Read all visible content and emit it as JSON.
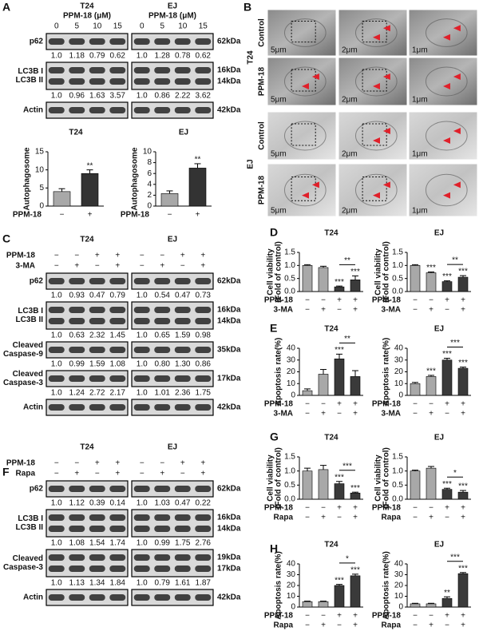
{
  "panel_letters": [
    "A",
    "B",
    "C",
    "D",
    "E",
    "F",
    "G",
    "H"
  ],
  "blot_a": {
    "cell_lines": [
      "T24",
      "EJ"
    ],
    "dose_label": "PPM-18 (μM)",
    "doses": [
      0,
      5,
      10,
      15
    ],
    "rows": [
      {
        "labels": [
          "p62"
        ],
        "kda": [
          "62kDa"
        ],
        "quant": [
          [
            "1.0",
            "1.18",
            "0.79",
            "0.62"
          ],
          [
            "1.0",
            "1.28",
            "0.78",
            "0.62"
          ]
        ]
      },
      {
        "labels": [
          "LC3B I",
          "LC3B II"
        ],
        "kda": [
          "16kDa",
          "14kDa"
        ],
        "quant": [
          [
            "1.0",
            "0.96",
            "1.63",
            "3.57"
          ],
          [
            "1.0",
            "0.86",
            "2.22",
            "3.62"
          ]
        ]
      },
      {
        "labels": [
          "Actin"
        ],
        "kda": [
          "42kDa"
        ]
      }
    ]
  },
  "em_panel": {
    "groups": [
      {
        "cell_line": "T24",
        "rows": [
          "Control",
          "PPM-18"
        ]
      },
      {
        "cell_line": "EJ",
        "rows": [
          "Control",
          "PPM-18"
        ]
      }
    ],
    "scale_bars": [
      "5μm",
      "2μm",
      "1μm"
    ]
  },
  "blot_c": {
    "cell_lines": [
      "T24",
      "EJ"
    ],
    "conditions": [
      {
        "name": "PPM-18",
        "signs": [
          "−",
          "−",
          "+",
          "+"
        ]
      },
      {
        "name": "3-MA",
        "signs": [
          "−",
          "+",
          "−",
          "+"
        ]
      }
    ],
    "rows": [
      {
        "labels": [
          "p62"
        ],
        "kda": [
          "62kDa"
        ],
        "quant": [
          [
            "1.0",
            "0.93",
            "0.47",
            "0.79"
          ],
          [
            "1.0",
            "0.54",
            "0.47",
            "0.73"
          ]
        ]
      },
      {
        "labels": [
          "LC3B I",
          "LC3B II"
        ],
        "kda": [
          "16kDa",
          "14kDa"
        ],
        "quant": [
          [
            "1.0",
            "0.63",
            "2.32",
            "1.45"
          ],
          [
            "1.0",
            "0.65",
            "1.59",
            "0.98"
          ]
        ]
      },
      {
        "labels": [
          "Cleaved",
          "Caspase-9"
        ],
        "kda": [
          "35kDa"
        ],
        "quant": [
          [
            "1.0",
            "0.99",
            "1.59",
            "1.08"
          ],
          [
            "1.0",
            "0.80",
            "1.30",
            "0.86"
          ]
        ]
      },
      {
        "labels": [
          "Cleaved",
          "Caspase-3"
        ],
        "kda": [
          "17kDa"
        ],
        "quant": [
          [
            "1.0",
            "1.24",
            "2.72",
            "2.17"
          ],
          [
            "1.0",
            "1.01",
            "2.36",
            "1.75"
          ]
        ]
      },
      {
        "labels": [
          "Actin"
        ],
        "kda": [
          "42kDa"
        ]
      }
    ]
  },
  "blot_f": {
    "cell_lines": [
      "T24",
      "EJ"
    ],
    "conditions": [
      {
        "name": "PPM-18",
        "signs": [
          "−",
          "−",
          "+",
          "+"
        ]
      },
      {
        "name": "Rapa",
        "signs": [
          "−",
          "+",
          "−",
          "+"
        ]
      }
    ],
    "rows": [
      {
        "labels": [
          "p62"
        ],
        "kda": [
          "62kDa"
        ],
        "quant": [
          [
            "1.0",
            "1.12",
            "0.39",
            "0.14"
          ],
          [
            "1.0",
            "1.03",
            "0.47",
            "0.22"
          ]
        ]
      },
      {
        "labels": [
          "LC3B I",
          "LC3B II"
        ],
        "kda": [
          "16kDa",
          "14kDa"
        ],
        "quant": [
          [
            "1.0",
            "1.08",
            "1.54",
            "1.74"
          ],
          [
            "1.0",
            "0.99",
            "1.75",
            "2.76"
          ]
        ]
      },
      {
        "labels": [
          "Cleaved",
          "Caspase-3"
        ],
        "kda": [
          "19kDa",
          "17kDa"
        ],
        "quant": [
          [
            "1.0",
            "1.13",
            "1.34",
            "1.84"
          ],
          [
            "1.0",
            "0.79",
            "1.61",
            "1.87"
          ]
        ]
      },
      {
        "labels": [
          "Actin"
        ],
        "kda": [
          "42kDa"
        ]
      }
    ]
  },
  "chart_data": [
    {
      "type": "bar",
      "title": "T24",
      "y_label": [
        "Autophagosome"
      ],
      "categories": [
        null,
        null
      ],
      "values": [
        4,
        9
      ],
      "errors": [
        0.8,
        1.0
      ],
      "colors": [
        "#a8a8a8",
        "#333333"
      ],
      "significance": [
        null,
        "**"
      ],
      "ylim": [
        0,
        15
      ],
      "yticks": [
        0,
        5,
        10,
        15
      ],
      "conditions": [
        {
          "name": "PPM-18",
          "signs": [
            "−",
            "+"
          ]
        }
      ]
    },
    {
      "type": "bar",
      "title": "EJ",
      "y_label": [
        "Autophagosome"
      ],
      "categories": [
        null,
        null
      ],
      "values": [
        2.3,
        7
      ],
      "errors": [
        0.5,
        0.8
      ],
      "colors": [
        "#a8a8a8",
        "#333333"
      ],
      "significance": [
        null,
        "**"
      ],
      "ylim": [
        0,
        10
      ],
      "yticks": [
        0,
        2,
        4,
        6,
        8,
        10
      ],
      "conditions": [
        {
          "name": "PPM-18",
          "signs": [
            "−",
            "+"
          ]
        }
      ]
    },
    {
      "type": "bar",
      "title": "T24",
      "y_label": [
        "Cell viability",
        "(Fold of control)"
      ],
      "categories": [
        null,
        null,
        null,
        null
      ],
      "values": [
        1.0,
        0.92,
        0.18,
        0.45
      ],
      "errors": [
        0.03,
        0.05,
        0.03,
        0.15
      ],
      "colors": [
        "#a8a8a8",
        "#a8a8a8",
        "#3a3a3a",
        "#3a3a3a"
      ],
      "significance": [
        null,
        null,
        "***",
        "***"
      ],
      "bracket": "**",
      "ylim": [
        0,
        1.5
      ],
      "yticks": [
        {
          "value": 0,
          "label": "0.0"
        },
        0.5,
        {
          "value": 1,
          "label": "1.0"
        },
        1.5
      ],
      "conditions": [
        {
          "name": "PPM-18",
          "signs": [
            "−",
            "−",
            "+",
            "+"
          ]
        },
        {
          "name": "3-MA",
          "signs": [
            "−",
            "+",
            "−",
            "+"
          ]
        }
      ]
    },
    {
      "type": "bar",
      "title": "EJ",
      "y_label": [
        "Cell viability",
        "(Fold of control)"
      ],
      "categories": [
        null,
        null,
        null,
        null
      ],
      "values": [
        1.0,
        0.72,
        0.38,
        0.55
      ],
      "errors": [
        0.03,
        0.03,
        0.03,
        0.06
      ],
      "colors": [
        "#a8a8a8",
        "#a8a8a8",
        "#3a3a3a",
        "#3a3a3a"
      ],
      "significance": [
        null,
        "***",
        "***",
        "***"
      ],
      "bracket": "**",
      "ylim": [
        0,
        1.5
      ],
      "yticks": [
        {
          "value": 0,
          "label": "0.0"
        },
        0.5,
        {
          "value": 1,
          "label": "1.0"
        },
        1.5
      ],
      "conditions": [
        {
          "name": "PPM-18",
          "signs": [
            "−",
            "−",
            "+",
            "+"
          ]
        },
        {
          "name": "3-MA",
          "signs": [
            "−",
            "+",
            "−",
            "+"
          ]
        }
      ]
    },
    {
      "type": "bar",
      "title": "T24",
      "y_label": [
        "Apoptosis rate(%)"
      ],
      "categories": [
        null,
        null,
        null,
        null
      ],
      "values": [
        4,
        18,
        31,
        16
      ],
      "errors": [
        1.5,
        4,
        4,
        5
      ],
      "colors": [
        "#a8a8a8",
        "#a8a8a8",
        "#3a3a3a",
        "#3a3a3a"
      ],
      "significance": [
        null,
        null,
        "***",
        null
      ],
      "bracket": "**",
      "ylim": [
        0,
        40
      ],
      "yticks": [
        0,
        10,
        20,
        30,
        40
      ],
      "conditions": [
        {
          "name": "PPM-18",
          "signs": [
            "−",
            "−",
            "+",
            "+"
          ]
        },
        {
          "name": "3-MA",
          "signs": [
            "−",
            "+",
            "−",
            "+"
          ]
        }
      ]
    },
    {
      "type": "bar",
      "title": "EJ",
      "y_label": [
        "Apoptosis rate(%)"
      ],
      "categories": [
        null,
        null,
        null,
        null
      ],
      "values": [
        10,
        16,
        30,
        23
      ],
      "errors": [
        1,
        1,
        1.5,
        1
      ],
      "colors": [
        "#a8a8a8",
        "#a8a8a8",
        "#3a3a3a",
        "#3a3a3a"
      ],
      "significance": [
        null,
        "***",
        "***",
        "***"
      ],
      "bracket": "***",
      "ylim": [
        0,
        40
      ],
      "yticks": [
        0,
        10,
        20,
        30,
        40
      ],
      "conditions": [
        {
          "name": "PPM-18",
          "signs": [
            "−",
            "−",
            "+",
            "+"
          ]
        },
        {
          "name": "3-MA",
          "signs": [
            "−",
            "+",
            "−",
            "+"
          ]
        }
      ]
    },
    {
      "type": "bar",
      "title": "T24",
      "y_label": [
        "Cell viability",
        "(Fold of control)"
      ],
      "categories": [
        null,
        null,
        null,
        null
      ],
      "values": [
        1.0,
        1.05,
        0.55,
        0.22
      ],
      "errors": [
        0.1,
        0.15,
        0.08,
        0.03
      ],
      "colors": [
        "#a8a8a8",
        "#a8a8a8",
        "#3a3a3a",
        "#3a3a3a"
      ],
      "significance": [
        null,
        null,
        "***",
        "***"
      ],
      "bracket": "***",
      "ylim": [
        0,
        1.5
      ],
      "yticks": [
        {
          "value": 0,
          "label": "0.0"
        },
        0.5,
        {
          "value": 1,
          "label": "1.0"
        },
        1.5
      ],
      "conditions": [
        {
          "name": "PPM-18",
          "signs": [
            "−",
            "−",
            "+",
            "+"
          ]
        },
        {
          "name": "Rapa",
          "signs": [
            "−",
            "+",
            "−",
            "+"
          ]
        }
      ]
    },
    {
      "type": "bar",
      "title": "EJ",
      "y_label": [
        "Cell viability",
        "(Fold of control)"
      ],
      "categories": [
        null,
        null,
        null,
        null
      ],
      "values": [
        1.0,
        1.1,
        0.35,
        0.25
      ],
      "errors": [
        0.03,
        0.06,
        0.04,
        0.06
      ],
      "colors": [
        "#a8a8a8",
        "#a8a8a8",
        "#3a3a3a",
        "#3a3a3a"
      ],
      "significance": [
        null,
        null,
        "***",
        "***"
      ],
      "bracket": "*",
      "ylim": [
        0,
        1.5
      ],
      "yticks": [
        {
          "value": 0,
          "label": "0.0"
        },
        0.5,
        {
          "value": 1,
          "label": "1.0"
        },
        1.5
      ],
      "conditions": [
        {
          "name": "PPM-18",
          "signs": [
            "−",
            "−",
            "+",
            "+"
          ]
        },
        {
          "name": "Rapa",
          "signs": [
            "−",
            "+",
            "−",
            "+"
          ]
        }
      ]
    },
    {
      "type": "bar",
      "title": "T24",
      "y_label": [
        "Apoptosis rate(%)"
      ],
      "categories": [
        null,
        null,
        null,
        null
      ],
      "values": [
        5,
        5,
        20,
        29
      ],
      "errors": [
        0.5,
        0.5,
        1,
        1.5
      ],
      "colors": [
        "#a8a8a8",
        "#a8a8a8",
        "#3a3a3a",
        "#3a3a3a"
      ],
      "significance": [
        null,
        null,
        "***",
        "***"
      ],
      "bracket": "*",
      "ylim": [
        0,
        40
      ],
      "yticks": [
        0,
        10,
        20,
        30,
        40
      ],
      "conditions": [
        {
          "name": "PPM-18",
          "signs": [
            "−",
            "−",
            "+",
            "+"
          ]
        },
        {
          "name": "Rapa",
          "signs": [
            "−",
            "+",
            "−",
            "+"
          ]
        }
      ]
    },
    {
      "type": "bar",
      "title": "EJ",
      "y_label": [
        "Apoptosis rate(%)"
      ],
      "categories": [
        null,
        null,
        null,
        null
      ],
      "values": [
        3,
        3,
        8,
        31
      ],
      "errors": [
        0.5,
        0.5,
        1.5,
        1
      ],
      "colors": [
        "#a8a8a8",
        "#a8a8a8",
        "#3a3a3a",
        "#3a3a3a"
      ],
      "significance": [
        null,
        null,
        "**",
        "***"
      ],
      "bracket": "***",
      "ylim": [
        0,
        40
      ],
      "yticks": [
        0,
        10,
        20,
        30,
        40
      ],
      "conditions": [
        {
          "name": "PPM-18",
          "signs": [
            "−",
            "−",
            "+",
            "+"
          ]
        },
        {
          "name": "Rapa",
          "signs": [
            "−",
            "+",
            "−",
            "+"
          ]
        }
      ]
    }
  ]
}
